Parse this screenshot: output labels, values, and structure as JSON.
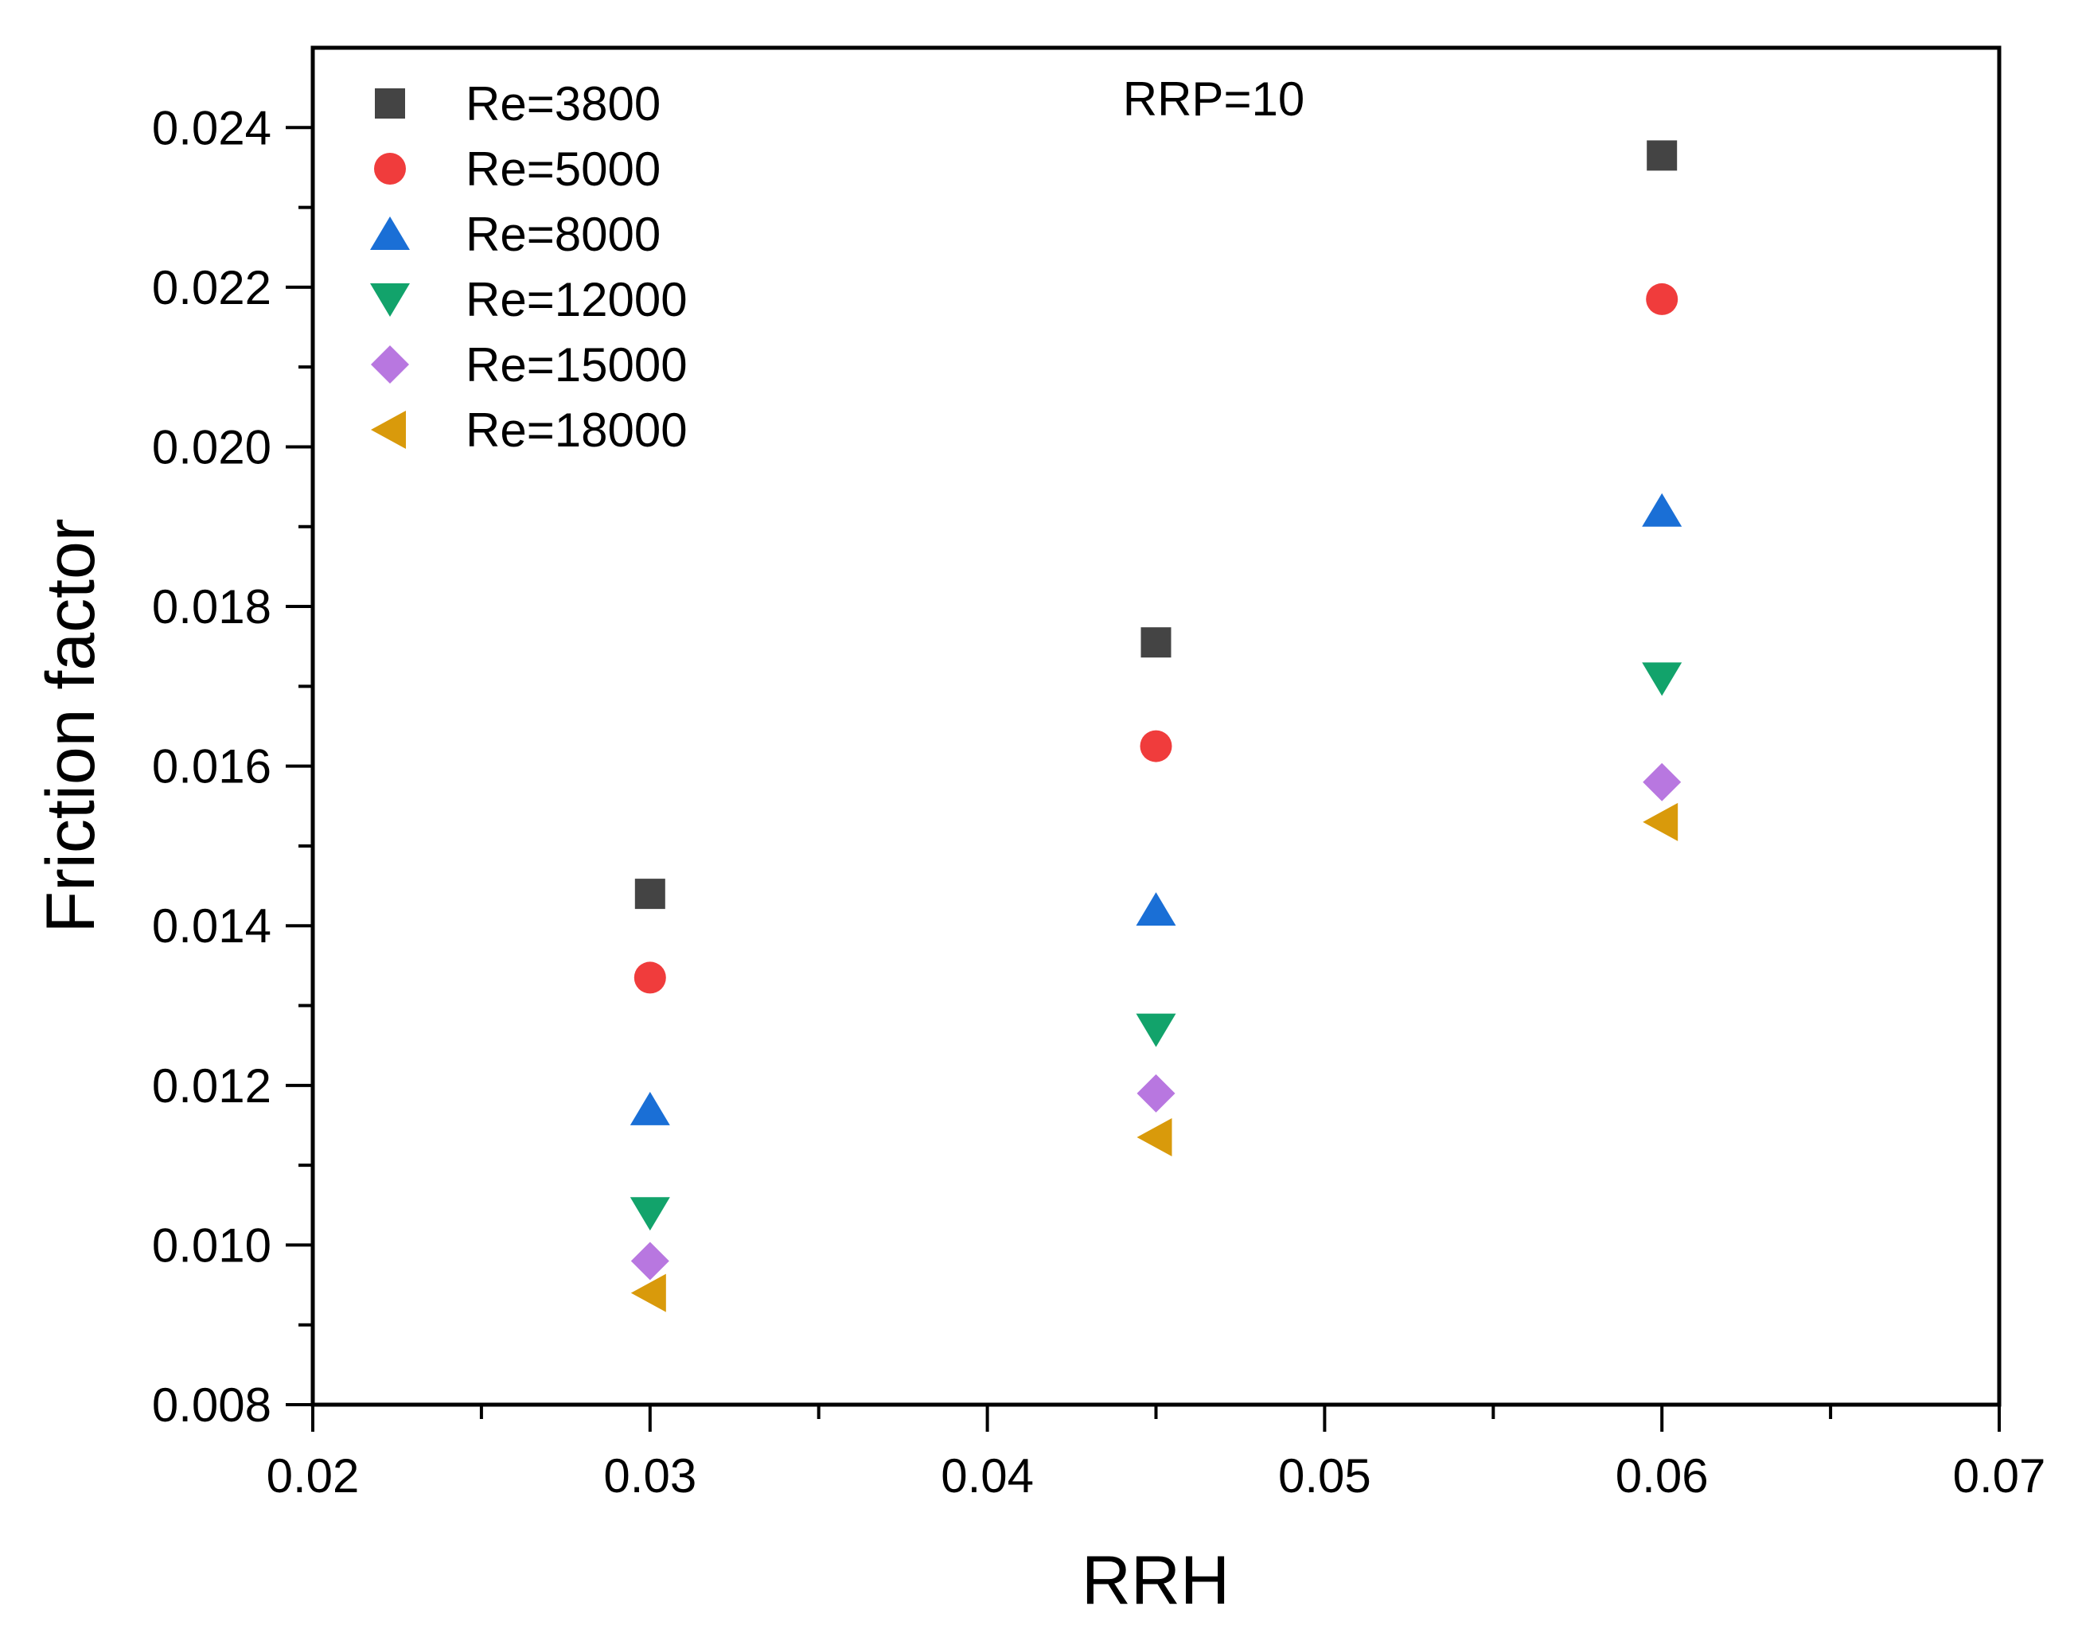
{
  "chart_data": {
    "type": "scatter",
    "title": "",
    "xlabel": "RRH",
    "ylabel": "Friction factor",
    "xlim": [
      0.02,
      0.07
    ],
    "ylim": [
      0.008,
      0.025
    ],
    "x_ticks": [
      "0.02",
      "0.03",
      "0.04",
      "0.05",
      "0.06",
      "0.07"
    ],
    "y_ticks": [
      "0.008",
      "0.010",
      "0.012",
      "0.014",
      "0.016",
      "0.018",
      "0.020",
      "0.022",
      "0.024"
    ],
    "x": [
      0.03,
      0.045,
      0.06
    ],
    "annotation": "RRP=10",
    "legend_position": "top-left",
    "grid": false,
    "series": [
      {
        "name": "Re=3800",
        "marker": "square",
        "color": "#444444",
        "values": [
          0.0144,
          0.01755,
          0.02365
        ]
      },
      {
        "name": "Re=5000",
        "marker": "circle",
        "color": "#f03c3c",
        "values": [
          0.01335,
          0.01625,
          0.02185
        ]
      },
      {
        "name": "Re=8000",
        "marker": "triangle-up",
        "color": "#1a6fd6",
        "values": [
          0.0117,
          0.0142,
          0.0192
        ]
      },
      {
        "name": "Re=12000",
        "marker": "triangle-down",
        "color": "#12a36b",
        "values": [
          0.0104,
          0.0127,
          0.0171
        ]
      },
      {
        "name": "Re=15000",
        "marker": "diamond",
        "color": "#b877e0",
        "values": [
          0.0098,
          0.0119,
          0.0158
        ]
      },
      {
        "name": "Re=18000",
        "marker": "triangle-left",
        "color": "#d99a0b",
        "values": [
          0.0094,
          0.01135,
          0.0153
        ]
      }
    ]
  }
}
